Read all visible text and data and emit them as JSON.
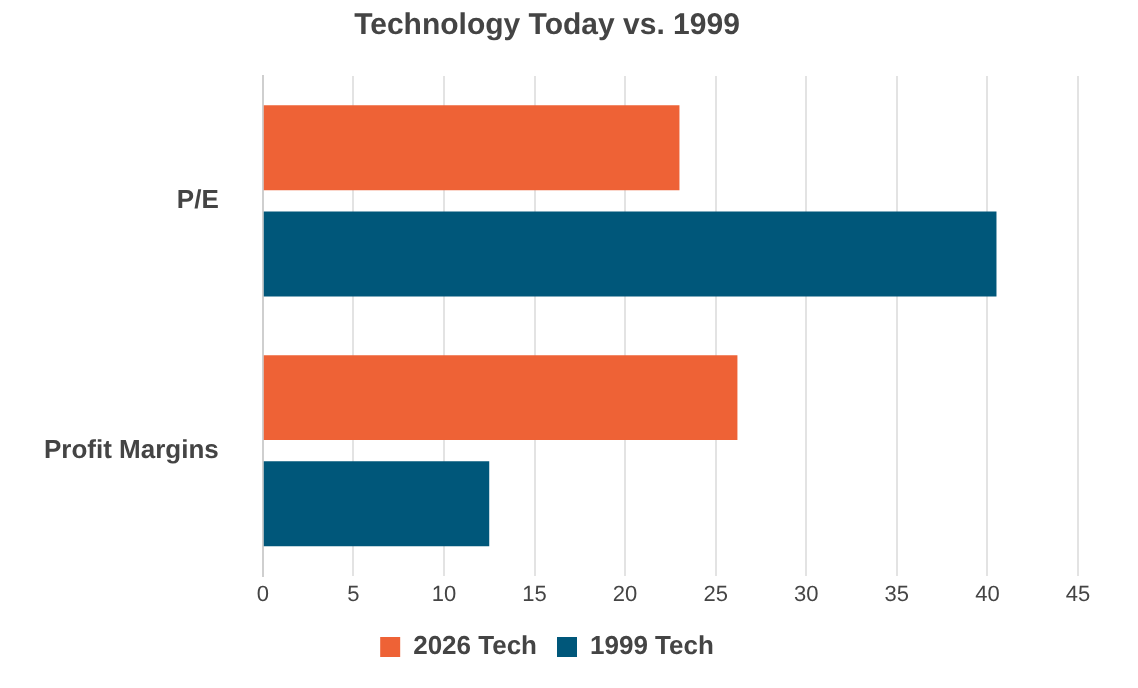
{
  "chart_data": {
    "type": "bar",
    "orientation": "horizontal",
    "title": "Technology Today vs. 1999",
    "categories": [
      "P/E",
      "Profit Margins"
    ],
    "series": [
      {
        "name": "2026 Tech",
        "color": "#ee6236",
        "values": [
          23,
          26.2
        ]
      },
      {
        "name": "1999 Tech",
        "color": "#00577a",
        "values": [
          40.5,
          12.5
        ]
      }
    ],
    "xlim": [
      0,
      45
    ],
    "xticks": [
      0,
      5,
      10,
      15,
      20,
      25,
      30,
      35,
      40,
      45
    ],
    "grid": "x",
    "legend": "bottom"
  }
}
